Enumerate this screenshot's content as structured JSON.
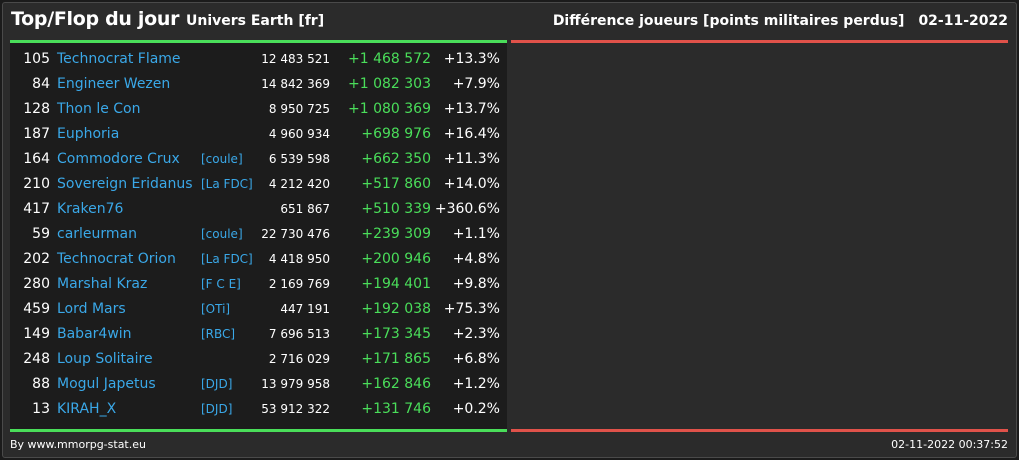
{
  "header": {
    "title": "Top/Flop du jour",
    "subtitle": "Univers Earth [fr]",
    "right_title": "Différence joueurs [points militaires perdus]",
    "date": "02-11-2022"
  },
  "colors": {
    "top_accent": "#4ade5a",
    "flop_accent": "#e0524a",
    "player_link": "#3aa8e8",
    "gain": "#4ade5a"
  },
  "top": [
    {
      "rank": "105",
      "name": "Technocrat Flame",
      "alliance": "",
      "points": "12 483 521",
      "diff": "+1 468 572",
      "pct": "+13.3%"
    },
    {
      "rank": "84",
      "name": "Engineer Wezen",
      "alliance": "",
      "points": "14 842 369",
      "diff": "+1 082 303",
      "pct": "+7.9%"
    },
    {
      "rank": "128",
      "name": "Thon le Con",
      "alliance": "",
      "points": "8 950 725",
      "diff": "+1 080 369",
      "pct": "+13.7%"
    },
    {
      "rank": "187",
      "name": "Euphoria",
      "alliance": "",
      "points": "4 960 934",
      "diff": "+698 976",
      "pct": "+16.4%"
    },
    {
      "rank": "164",
      "name": "Commodore Crux",
      "alliance": "[coule]",
      "points": "6 539 598",
      "diff": "+662 350",
      "pct": "+11.3%"
    },
    {
      "rank": "210",
      "name": "Sovereign Eridanus",
      "alliance": "[La FDC]",
      "points": "4 212 420",
      "diff": "+517 860",
      "pct": "+14.0%"
    },
    {
      "rank": "417",
      "name": "Kraken76",
      "alliance": "",
      "points": "651 867",
      "diff": "+510 339",
      "pct": "+360.6%"
    },
    {
      "rank": "59",
      "name": "carleurman",
      "alliance": "[coule]",
      "points": "22 730 476",
      "diff": "+239 309",
      "pct": "+1.1%"
    },
    {
      "rank": "202",
      "name": "Technocrat Orion",
      "alliance": "[La FDC]",
      "points": "4 418 950",
      "diff": "+200 946",
      "pct": "+4.8%"
    },
    {
      "rank": "280",
      "name": "Marshal Kraz",
      "alliance": "[F C E]",
      "points": "2 169 769",
      "diff": "+194 401",
      "pct": "+9.8%"
    },
    {
      "rank": "459",
      "name": "Lord Mars",
      "alliance": "[OTi]",
      "points": "447 191",
      "diff": "+192 038",
      "pct": "+75.3%"
    },
    {
      "rank": "149",
      "name": "Babar4win",
      "alliance": "[RBC]",
      "points": "7 696 513",
      "diff": "+173 345",
      "pct": "+2.3%"
    },
    {
      "rank": "248",
      "name": "Loup Solitaire",
      "alliance": "",
      "points": "2 716 029",
      "diff": "+171 865",
      "pct": "+6.8%"
    },
    {
      "rank": "88",
      "name": "Mogul Japetus",
      "alliance": "[DJD]",
      "points": "13 979 958",
      "diff": "+162 846",
      "pct": "+1.2%"
    },
    {
      "rank": "13",
      "name": "KIRAH_X",
      "alliance": "[DJD]",
      "points": "53 912 322",
      "diff": "+131 746",
      "pct": "+0.2%"
    }
  ],
  "footer": {
    "credit": "By www.mmorpg-stat.eu",
    "timestamp": "02-11-2022 00:37:52"
  }
}
